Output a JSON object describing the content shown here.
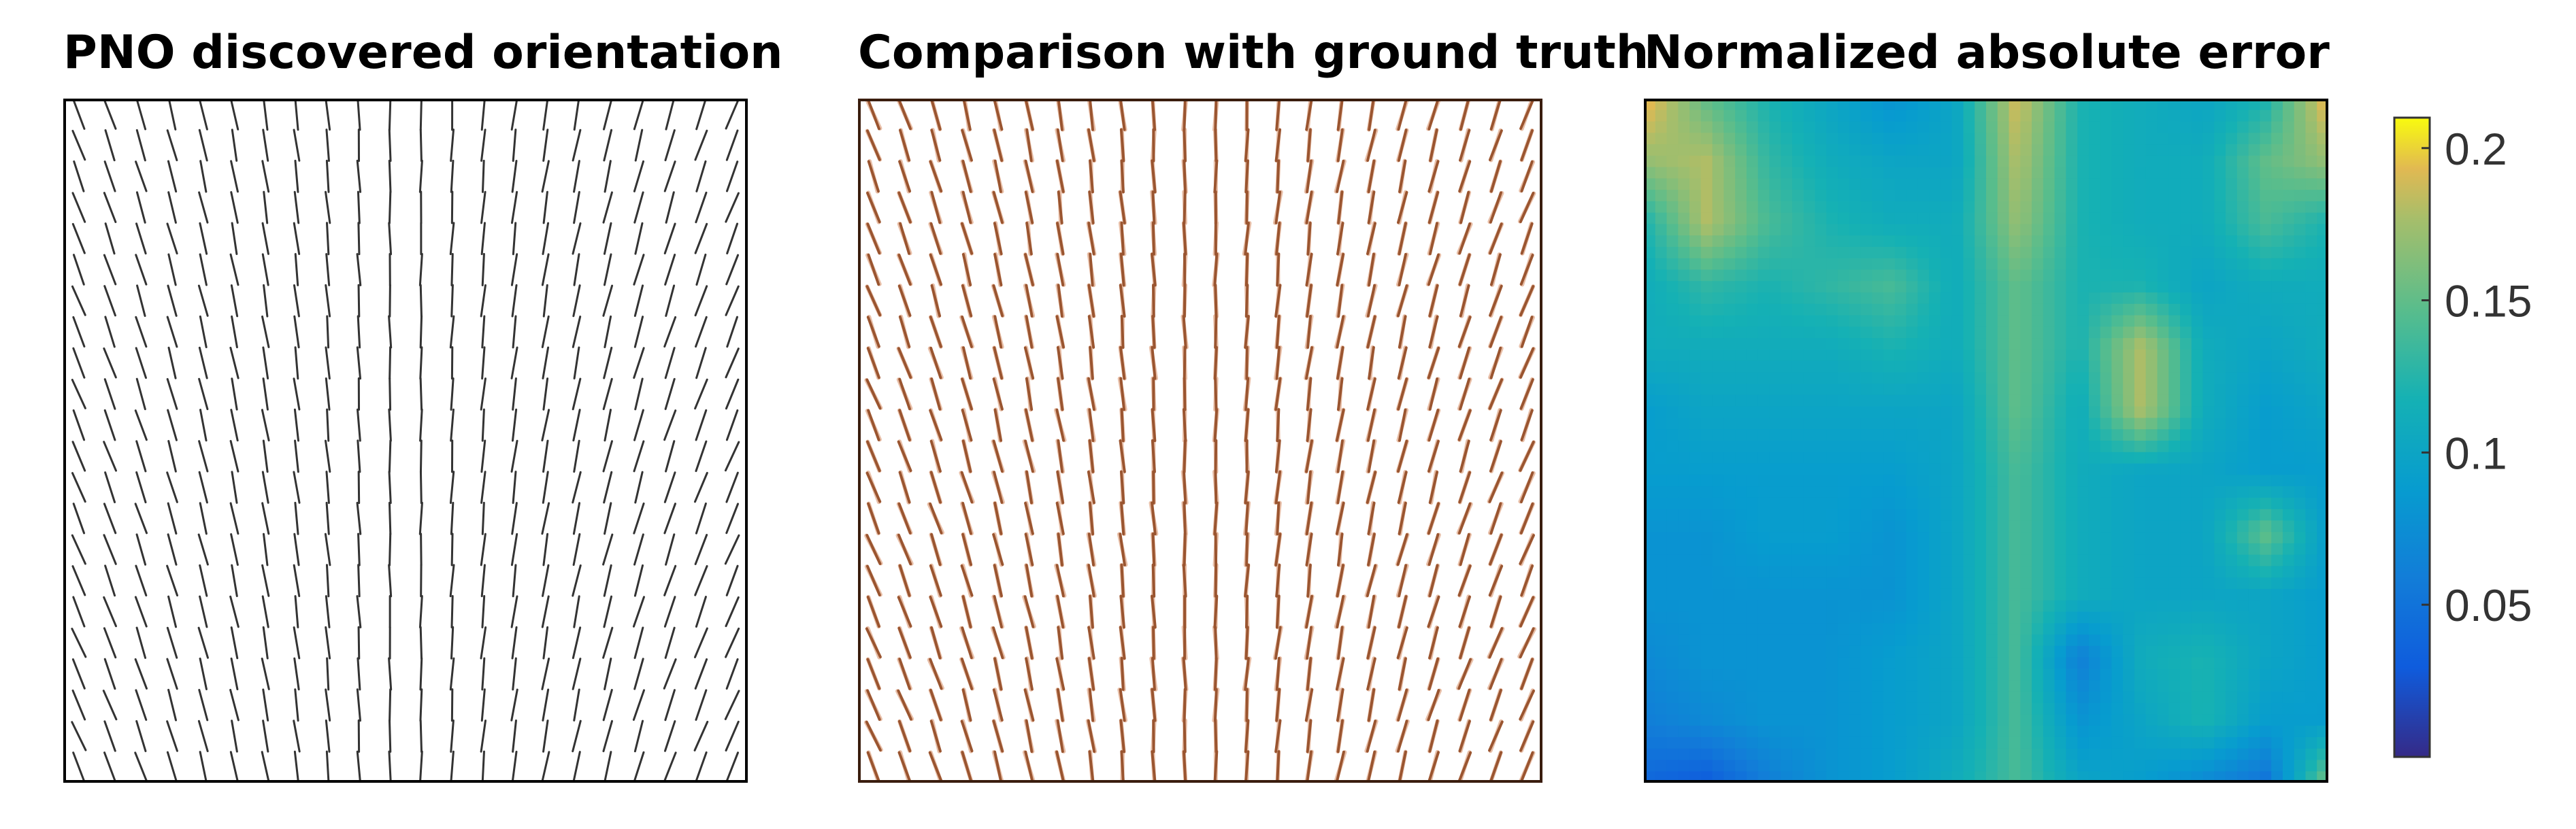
{
  "panels": [
    {
      "title": "PNO discovered orientation"
    },
    {
      "title": "Comparison with ground truth"
    },
    {
      "title": "Normalized absolute error"
    }
  ],
  "colors": {
    "frame": "#000000",
    "predicted_line": "#333333",
    "ground_truth_line": "#e8bfa8",
    "comparison_line": "#9a5530",
    "comparison_frame": "#3a1d0e"
  },
  "colormap": "parula",
  "chart_data": [
    {
      "type": "line",
      "title": "PNO discovered orientation",
      "subtype": "orientation-field",
      "grid": [
        22,
        22
      ],
      "x_range": [
        0,
        1
      ],
      "y_range": [
        0,
        1
      ],
      "description_of_field": "short line segments tilted with a horizontal shear: left half tilts like '\\', right half like '/', vertical near center column"
    },
    {
      "type": "line",
      "title": "Comparison with ground truth",
      "subtype": "orientation-field-overlay",
      "grid": [
        22,
        22
      ],
      "series": [
        {
          "values": "predicted segments (dark brown)"
        },
        {
          "values": "ground truth segments (light pink)"
        }
      ]
    },
    {
      "type": "heatmap",
      "title": "Normalized absolute error",
      "colorbar": {
        "range": [
          0,
          0.21
        ],
        "ticks": [
          0.05,
          0.1,
          0.15,
          0.2
        ],
        "tick_labels": [
          "0.05",
          "0.1",
          "0.15",
          "0.2"
        ]
      },
      "grid": [
        12,
        12
      ],
      "values": [
        [
          0.2,
          0.15,
          0.12,
          0.1,
          0.08,
          0.1,
          0.19,
          0.12,
          0.11,
          0.1,
          0.12,
          0.2
        ],
        [
          0.17,
          0.18,
          0.13,
          0.11,
          0.1,
          0.1,
          0.18,
          0.12,
          0.11,
          0.11,
          0.15,
          0.17
        ],
        [
          0.12,
          0.18,
          0.14,
          0.12,
          0.11,
          0.11,
          0.17,
          0.12,
          0.11,
          0.11,
          0.14,
          0.12
        ],
        [
          0.11,
          0.13,
          0.12,
          0.13,
          0.14,
          0.11,
          0.15,
          0.12,
          0.12,
          0.1,
          0.11,
          0.11
        ],
        [
          0.11,
          0.11,
          0.11,
          0.11,
          0.12,
          0.11,
          0.15,
          0.12,
          0.18,
          0.11,
          0.1,
          0.11
        ],
        [
          0.09,
          0.1,
          0.1,
          0.1,
          0.1,
          0.1,
          0.15,
          0.11,
          0.18,
          0.11,
          0.09,
          0.1
        ],
        [
          0.09,
          0.09,
          0.09,
          0.09,
          0.09,
          0.1,
          0.14,
          0.11,
          0.1,
          0.1,
          0.09,
          0.09
        ],
        [
          0.08,
          0.08,
          0.09,
          0.09,
          0.08,
          0.1,
          0.14,
          0.11,
          0.1,
          0.1,
          0.15,
          0.09
        ],
        [
          0.08,
          0.08,
          0.08,
          0.08,
          0.08,
          0.1,
          0.14,
          0.11,
          0.1,
          0.1,
          0.1,
          0.09
        ],
        [
          0.07,
          0.08,
          0.08,
          0.08,
          0.09,
          0.1,
          0.14,
          0.06,
          0.11,
          0.12,
          0.1,
          0.09
        ],
        [
          0.06,
          0.07,
          0.08,
          0.08,
          0.09,
          0.1,
          0.14,
          0.08,
          0.1,
          0.12,
          0.09,
          0.09
        ],
        [
          0.04,
          0.03,
          0.06,
          0.08,
          0.09,
          0.11,
          0.14,
          0.1,
          0.09,
          0.07,
          0.05,
          0.16
        ]
      ]
    }
  ]
}
